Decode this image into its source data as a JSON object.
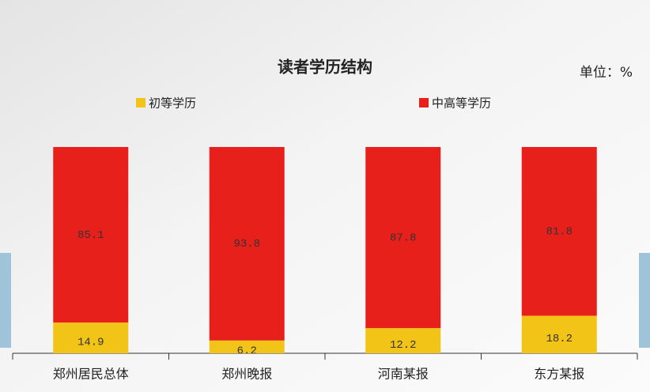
{
  "chart_data": {
    "type": "stacked_bar",
    "title": "读者学历结构",
    "unit": "单位：%",
    "categories": [
      "郑州居民总体",
      "郑州晚报",
      "河南某报",
      "东方某报"
    ],
    "series": [
      {
        "name": "初等学历",
        "color": "#f2c417",
        "values": [
          14.9,
          6.2,
          12.2,
          18.2
        ]
      },
      {
        "name": "中高等学历",
        "color": "#e8201c",
        "values": [
          85.1,
          93.8,
          87.8,
          81.8
        ]
      }
    ]
  }
}
